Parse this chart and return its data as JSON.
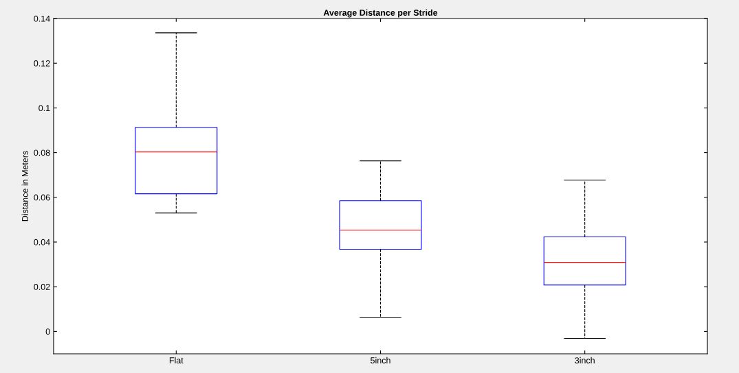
{
  "chart_data": {
    "type": "box",
    "title": "Average Distance per Stride",
    "ylabel": "Distance in Meters",
    "categories": [
      "Flat",
      "5inch",
      "3inch"
    ],
    "boxes": [
      {
        "low": 0.053,
        "q1": 0.0616,
        "median": 0.0803,
        "q3": 0.0913,
        "high": 0.1336
      },
      {
        "low": 0.0061,
        "q1": 0.0368,
        "median": 0.0453,
        "q3": 0.0585,
        "high": 0.0763
      },
      {
        "low": -0.0031,
        "q1": 0.0208,
        "median": 0.0309,
        "q3": 0.0423,
        "high": 0.0677
      }
    ],
    "color": "#0000ff",
    "ylim": [
      -0.01,
      0.14
    ],
    "yticks": [
      0,
      0.02,
      0.04,
      0.06,
      0.08,
      {
        "value": 0.1,
        "label": "0.1"
      },
      0.12,
      0.14
    ],
    "grid": false,
    "legend": false
  }
}
